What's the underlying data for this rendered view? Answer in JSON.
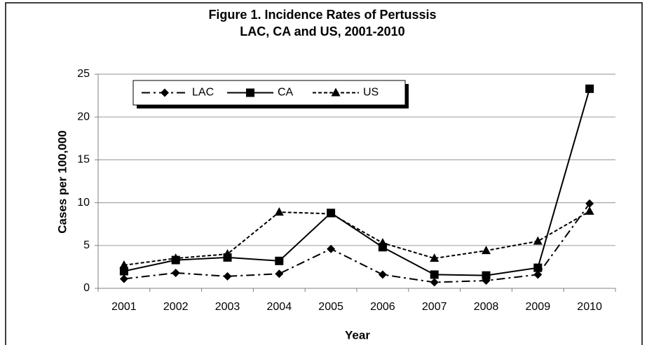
{
  "chart_data": {
    "type": "line",
    "title": [
      "Figure 1. Incidence Rates of Pertussis",
      "LAC, CA and US, 2001-2010"
    ],
    "x_label": "Year",
    "y_label": "Cases per 100,000",
    "categories": [
      "2001",
      "2002",
      "2003",
      "2004",
      "2005",
      "2006",
      "2007",
      "2008",
      "2009",
      "2010"
    ],
    "series": [
      {
        "name": "LAC",
        "color": "#000000",
        "marker": "diamond",
        "line_style": "dash-dot",
        "values": [
          1.1,
          1.8,
          1.4,
          1.7,
          4.6,
          1.6,
          0.7,
          0.9,
          1.6,
          9.9
        ]
      },
      {
        "name": "CA",
        "color": "#000000",
        "marker": "square",
        "line_style": "solid",
        "values": [
          2.0,
          3.3,
          3.6,
          3.2,
          8.8,
          4.8,
          1.6,
          1.5,
          2.4,
          23.3
        ]
      },
      {
        "name": "US",
        "color": "#000000",
        "marker": "triangle",
        "line_style": "dashed",
        "values": [
          2.7,
          3.5,
          4.0,
          8.9,
          8.7,
          5.3,
          3.5,
          4.4,
          5.5,
          9.0
        ]
      }
    ],
    "ylim": [
      0,
      25
    ],
    "yticks": [
      0,
      5,
      10,
      15,
      20,
      25
    ],
    "grid": true,
    "legend": "upper left"
  }
}
